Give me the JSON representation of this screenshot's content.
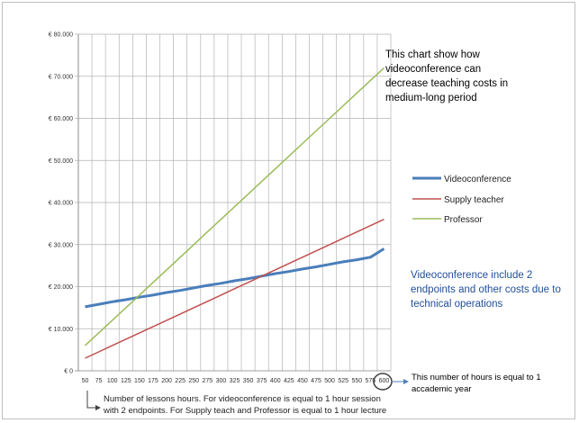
{
  "chart_data": {
    "type": "line",
    "x": [
      50,
      75,
      100,
      125,
      150,
      175,
      200,
      225,
      250,
      275,
      300,
      325,
      350,
      375,
      400,
      425,
      450,
      475,
      500,
      525,
      550,
      575,
      600
    ],
    "x_tick_labels": [
      "50",
      "75",
      "100",
      "125",
      "150",
      "175",
      "200",
      "225",
      "250",
      "275",
      "300",
      "325",
      "350",
      "375",
      "400",
      "425",
      "450",
      "475",
      "500",
      "525",
      "550",
      "575",
      "600"
    ],
    "y_tick_labels": [
      "€ 0",
      "€ 10.000",
      "€ 20.000",
      "€ 30.000",
      "€ 40.000",
      "€ 50.000",
      "€ 60.000",
      "€ 70.000",
      "€ 80.000"
    ],
    "ylim": [
      0,
      80000
    ],
    "grid": true,
    "legend_position": "right",
    "series": [
      {
        "name": "Videoconference",
        "color": "#4a7ebb",
        "values": [
          15200,
          15800,
          16400,
          16900,
          17500,
          18000,
          18600,
          19100,
          19700,
          20300,
          20800,
          21400,
          21900,
          22500,
          23100,
          23600,
          24200,
          24700,
          25300,
          25900,
          26400,
          27000,
          29000
        ]
      },
      {
        "name": "Supply teacher",
        "color": "#c0504d",
        "values": [
          3000,
          4500,
          6000,
          7500,
          9000,
          10500,
          12000,
          13500,
          15000,
          16500,
          18000,
          19500,
          21000,
          22500,
          24000,
          25500,
          27000,
          28500,
          30000,
          31500,
          33000,
          34500,
          36000
        ]
      },
      {
        "name": "Professor",
        "color": "#9bbb59",
        "values": [
          6000,
          9000,
          12000,
          15000,
          18000,
          21000,
          24000,
          27000,
          30000,
          33000,
          36000,
          39000,
          42000,
          45000,
          48000,
          51000,
          54000,
          57000,
          60000,
          63000,
          66000,
          69000,
          72000
        ]
      }
    ]
  },
  "annotations": {
    "top_note": [
      "This chart show how",
      "videoconference can",
      "decrease teaching costs in",
      "medium-long period"
    ],
    "blue_note": [
      "Videoconference include 2",
      "endpoints and other costs due to",
      "technical operations"
    ],
    "hours_note": [
      "This number of hours is equal to 1",
      "accademic year"
    ],
    "bottom_note": [
      "Number of lessons hours.  For videoconference is equal to  1 hour session",
      "with 2 endpoints. For  Supply teach and Professor is equal to 1 hour lecture"
    ]
  }
}
